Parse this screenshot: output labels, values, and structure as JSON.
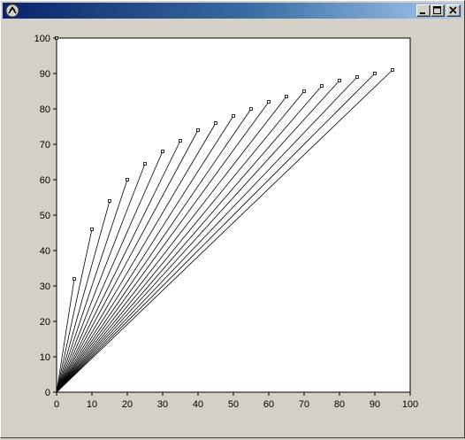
{
  "window": {
    "title": "",
    "buttons": {
      "minimize_icon": "minimize-icon",
      "maximize_icon": "maximize-icon",
      "close_icon": "close-icon"
    }
  },
  "chart_data": {
    "type": "line",
    "title": "",
    "xlabel": "",
    "ylabel": "",
    "xlim": [
      0,
      100
    ],
    "ylim": [
      0,
      100
    ],
    "xticks": [
      0,
      10,
      20,
      30,
      40,
      50,
      60,
      70,
      80,
      90,
      100
    ],
    "yticks": [
      0,
      10,
      20,
      30,
      40,
      50,
      60,
      70,
      80,
      90,
      100
    ],
    "grid": false,
    "line_color": "#000000",
    "plot_background": "#ffffff",
    "series": [
      {
        "values": [
          [
            0,
            0
          ],
          [
            0,
            100
          ]
        ]
      },
      {
        "values": [
          [
            0,
            0
          ],
          [
            5,
            32
          ]
        ]
      },
      {
        "values": [
          [
            0,
            0
          ],
          [
            10,
            46
          ]
        ]
      },
      {
        "values": [
          [
            0,
            0
          ],
          [
            15,
            54
          ]
        ]
      },
      {
        "values": [
          [
            0,
            0
          ],
          [
            20,
            60
          ]
        ]
      },
      {
        "values": [
          [
            0,
            0
          ],
          [
            25,
            64.5
          ]
        ]
      },
      {
        "values": [
          [
            0,
            0
          ],
          [
            30,
            68
          ]
        ]
      },
      {
        "values": [
          [
            0,
            0
          ],
          [
            35,
            71
          ]
        ]
      },
      {
        "values": [
          [
            0,
            0
          ],
          [
            40,
            74
          ]
        ]
      },
      {
        "values": [
          [
            0,
            0
          ],
          [
            45,
            76
          ]
        ]
      },
      {
        "values": [
          [
            0,
            0
          ],
          [
            50,
            78
          ]
        ]
      },
      {
        "values": [
          [
            0,
            0
          ],
          [
            55,
            80
          ]
        ]
      },
      {
        "values": [
          [
            0,
            0
          ],
          [
            60,
            82
          ]
        ]
      },
      {
        "values": [
          [
            0,
            0
          ],
          [
            65,
            83.5
          ]
        ]
      },
      {
        "values": [
          [
            0,
            0
          ],
          [
            70,
            85
          ]
        ]
      },
      {
        "values": [
          [
            0,
            0
          ],
          [
            75,
            86.5
          ]
        ]
      },
      {
        "values": [
          [
            0,
            0
          ],
          [
            80,
            88
          ]
        ]
      },
      {
        "values": [
          [
            0,
            0
          ],
          [
            85,
            89
          ]
        ]
      },
      {
        "values": [
          [
            0,
            0
          ],
          [
            90,
            90
          ]
        ]
      },
      {
        "values": [
          [
            0,
            0
          ],
          [
            95,
            91
          ]
        ]
      }
    ]
  }
}
